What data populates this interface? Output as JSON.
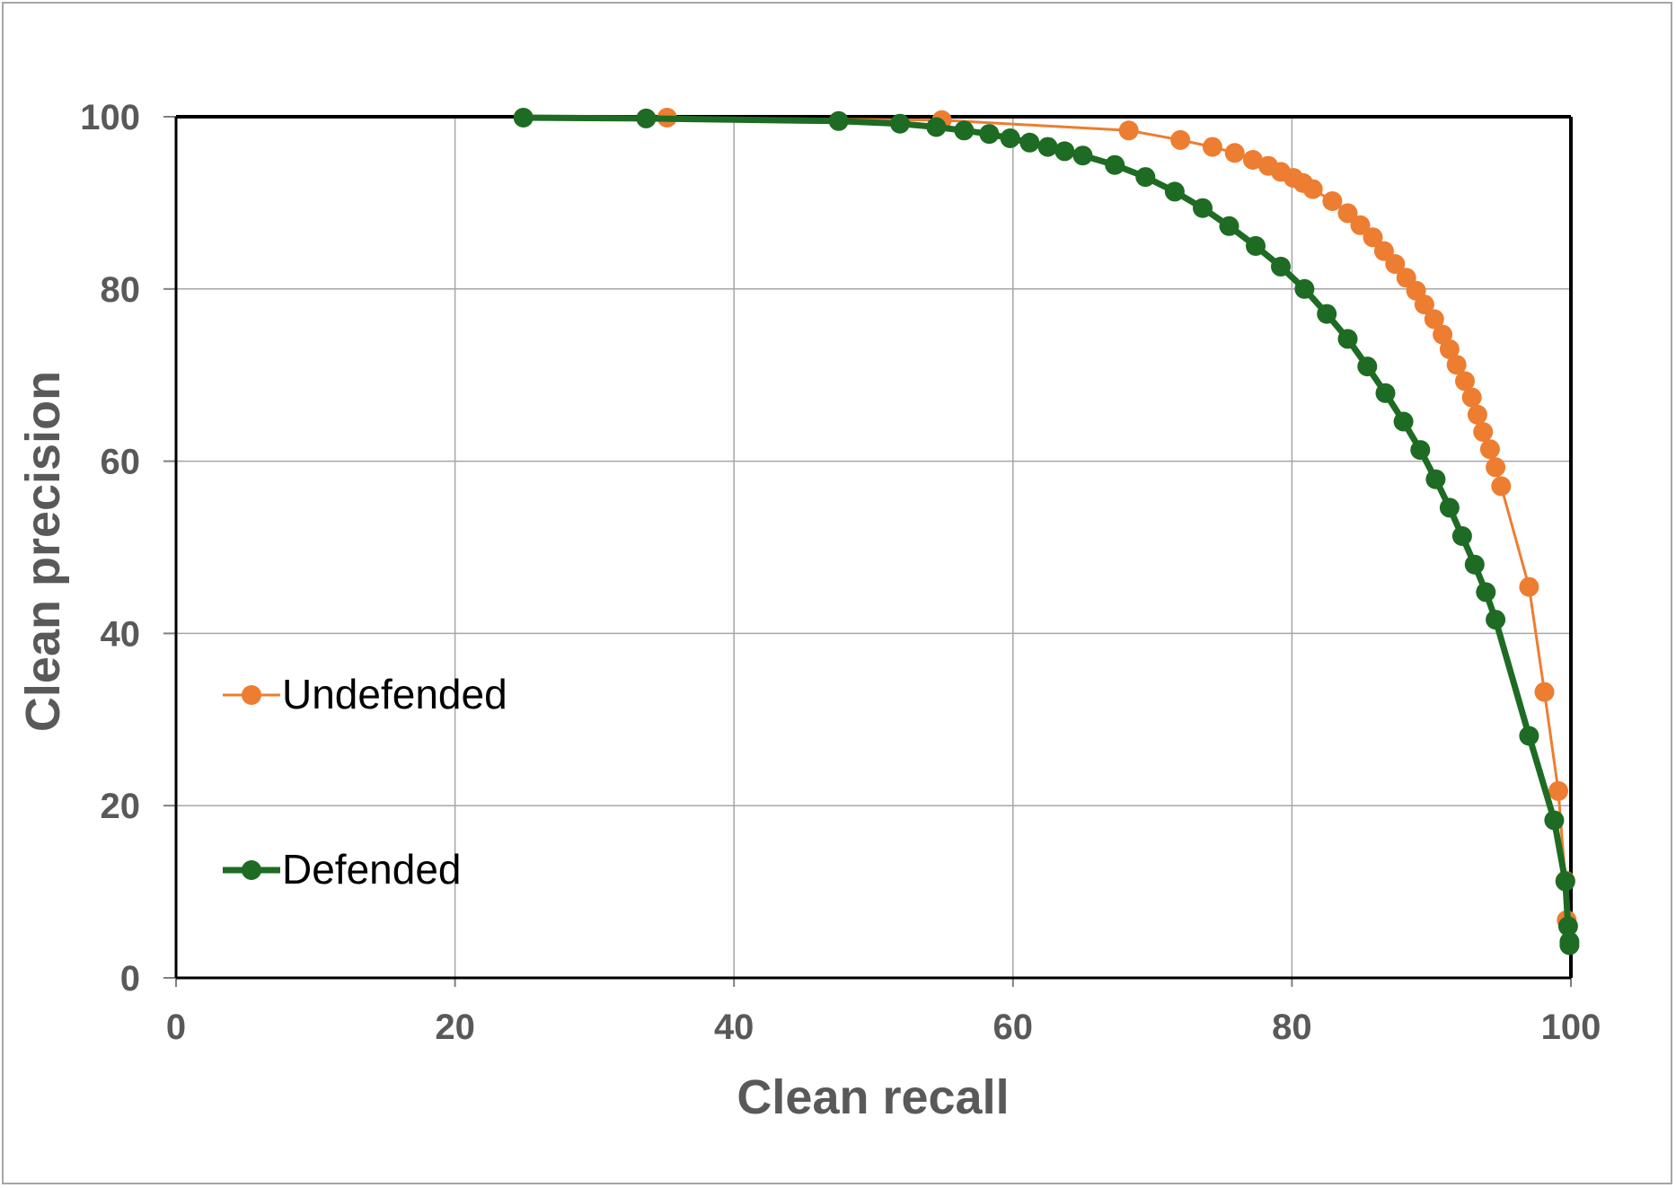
{
  "chart_data": {
    "type": "line",
    "title": "",
    "xlabel": "Clean recall",
    "ylabel": "Clean precision",
    "xlim": [
      0,
      100
    ],
    "ylim": [
      0,
      100
    ],
    "x_ticks": [
      "0",
      "20",
      "40",
      "60",
      "80",
      "100"
    ],
    "y_ticks": [
      "0",
      "20",
      "40",
      "60",
      "80",
      "100"
    ],
    "grid": true,
    "legend_position": "left",
    "series": [
      {
        "name": "Undefended",
        "color": "#ed7d31",
        "points": [
          [
            35.2,
            99.9
          ],
          [
            54.9,
            99.6
          ],
          [
            68.3,
            98.4
          ],
          [
            72.0,
            97.3
          ],
          [
            74.3,
            96.5
          ],
          [
            75.9,
            95.8
          ],
          [
            77.2,
            95.0
          ],
          [
            78.3,
            94.3
          ],
          [
            79.2,
            93.6
          ],
          [
            80.1,
            92.9
          ],
          [
            80.8,
            92.3
          ],
          [
            81.5,
            91.6
          ],
          [
            82.9,
            90.2
          ],
          [
            84.0,
            88.8
          ],
          [
            84.9,
            87.4
          ],
          [
            85.8,
            86.0
          ],
          [
            86.6,
            84.4
          ],
          [
            87.4,
            82.9
          ],
          [
            88.2,
            81.3
          ],
          [
            88.9,
            79.8
          ],
          [
            89.5,
            78.2
          ],
          [
            90.2,
            76.5
          ],
          [
            90.8,
            74.7
          ],
          [
            91.3,
            73.0
          ],
          [
            91.8,
            71.2
          ],
          [
            92.4,
            69.3
          ],
          [
            92.9,
            67.4
          ],
          [
            93.3,
            65.4
          ],
          [
            93.7,
            63.4
          ],
          [
            94.2,
            61.4
          ],
          [
            94.6,
            59.3
          ],
          [
            95.0,
            57.1
          ],
          [
            97.0,
            45.4
          ],
          [
            98.1,
            33.2
          ],
          [
            99.1,
            21.7
          ],
          [
            99.6,
            11.3
          ],
          [
            99.7,
            6.7
          ]
        ]
      },
      {
        "name": "Defended",
        "color": "#1e6b24",
        "points": [
          [
            24.9,
            99.9
          ],
          [
            33.7,
            99.8
          ],
          [
            47.5,
            99.5
          ],
          [
            51.9,
            99.2
          ],
          [
            54.5,
            98.8
          ],
          [
            56.5,
            98.4
          ],
          [
            58.3,
            98.0
          ],
          [
            59.8,
            97.5
          ],
          [
            61.2,
            97.0
          ],
          [
            62.5,
            96.5
          ],
          [
            63.7,
            96.0
          ],
          [
            65.0,
            95.5
          ],
          [
            67.3,
            94.4
          ],
          [
            69.5,
            93.0
          ],
          [
            71.6,
            91.3
          ],
          [
            73.6,
            89.4
          ],
          [
            75.5,
            87.3
          ],
          [
            77.4,
            85.0
          ],
          [
            79.2,
            82.6
          ],
          [
            80.9,
            80.0
          ],
          [
            82.5,
            77.1
          ],
          [
            84.0,
            74.2
          ],
          [
            85.4,
            71.0
          ],
          [
            86.7,
            67.9
          ],
          [
            88.0,
            64.6
          ],
          [
            89.2,
            61.3
          ],
          [
            90.3,
            57.9
          ],
          [
            91.3,
            54.6
          ],
          [
            92.2,
            51.3
          ],
          [
            93.1,
            48.0
          ],
          [
            93.9,
            44.8
          ],
          [
            94.6,
            41.6
          ],
          [
            97.0,
            28.1
          ],
          [
            98.8,
            18.3
          ],
          [
            99.6,
            11.2
          ],
          [
            99.8,
            6.0
          ],
          [
            99.9,
            4.2
          ],
          [
            99.9,
            3.8
          ]
        ]
      }
    ]
  }
}
